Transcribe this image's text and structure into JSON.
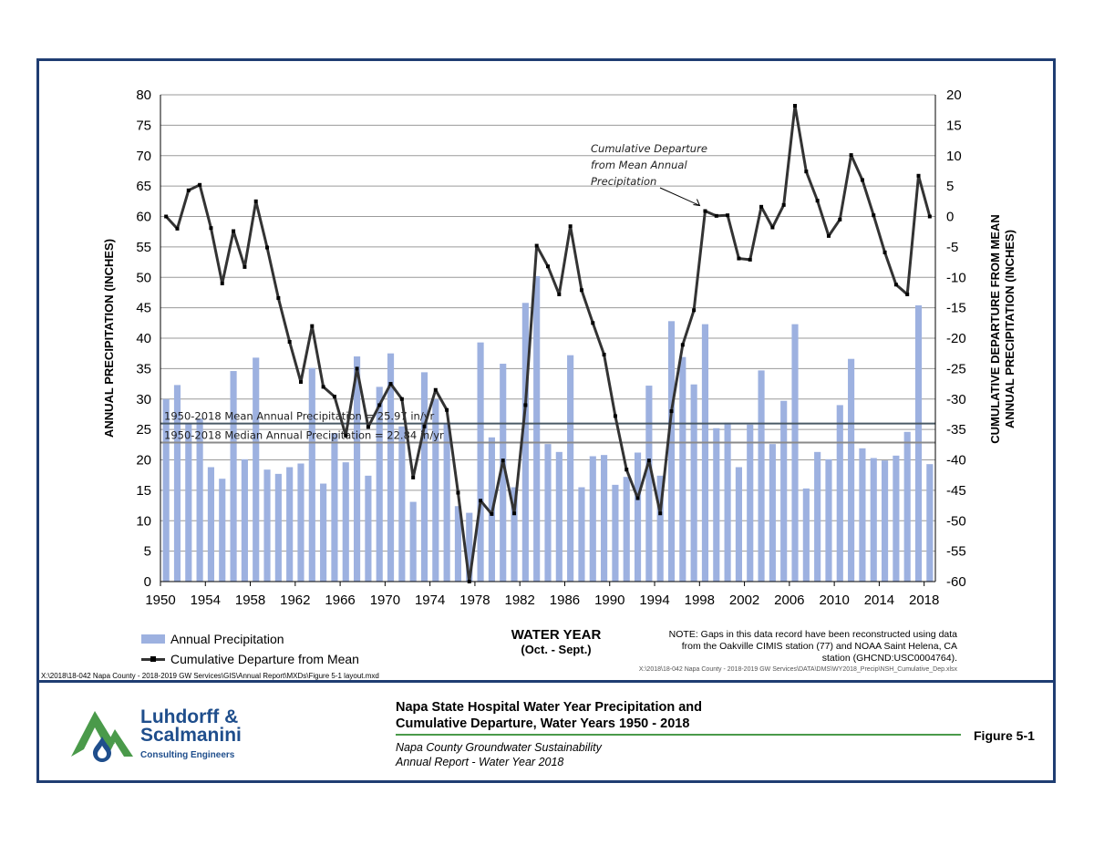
{
  "chart_data": {
    "type": "bar",
    "xlabel": "WATER YEAR",
    "xlabel_sub": "(Oct. - Sept.)",
    "ylabel_left": "ANNUAL  PRECIPITATION (INCHES)",
    "ylabel_right_lines": [
      "CUMULATIVE DEPARTURE FROM MEAN",
      "ANNUAL PRECIPITATION (INCHES)"
    ],
    "ylim_left": [
      0,
      80
    ],
    "ylim_right": [
      -60,
      20
    ],
    "yticks_left": [
      0,
      5,
      10,
      15,
      20,
      25,
      30,
      35,
      40,
      45,
      50,
      55,
      60,
      65,
      70,
      75,
      80
    ],
    "yticks_right": [
      -60,
      -55,
      -50,
      -45,
      -40,
      -35,
      -30,
      -25,
      -20,
      -15,
      -10,
      -5,
      0,
      5,
      10,
      15,
      20
    ],
    "xticks": [
      1950,
      1954,
      1958,
      1962,
      1966,
      1970,
      1974,
      1978,
      1982,
      1986,
      1990,
      1994,
      1998,
      2002,
      2006,
      2010,
      2014,
      2018
    ],
    "grid": true,
    "legend_position": "bottom-left",
    "years": [
      1950,
      1951,
      1952,
      1953,
      1954,
      1955,
      1956,
      1957,
      1958,
      1959,
      1960,
      1961,
      1962,
      1963,
      1964,
      1965,
      1966,
      1967,
      1968,
      1969,
      1970,
      1971,
      1972,
      1973,
      1974,
      1975,
      1976,
      1977,
      1978,
      1979,
      1980,
      1981,
      1982,
      1983,
      1984,
      1985,
      1986,
      1987,
      1988,
      1989,
      1990,
      1991,
      1992,
      1993,
      1994,
      1995,
      1996,
      1997,
      1998,
      1999,
      2000,
      2001,
      2002,
      2003,
      2004,
      2005,
      2006,
      2007,
      2008,
      2009,
      2010,
      2011,
      2012,
      2013,
      2014,
      2015,
      2016,
      2017,
      2018
    ],
    "series": [
      {
        "name": "Annual Precipitation",
        "axis": "left",
        "color": "#9db1e0",
        "values": [
          30.0,
          32.3,
          26.0,
          26.8,
          18.8,
          16.9,
          34.6,
          20.1,
          36.8,
          18.4,
          17.7,
          18.8,
          19.4,
          35.1,
          16.1,
          24.4,
          19.6,
          37.0,
          17.4,
          32.0,
          37.5,
          25.5,
          13.1,
          34.4,
          30.0,
          26.0,
          12.4,
          11.3,
          39.3,
          23.7,
          35.8,
          15.5,
          45.8,
          50.2,
          22.6,
          21.3,
          37.2,
          15.5,
          20.6,
          20.8,
          15.9,
          17.2,
          21.2,
          32.2,
          17.4,
          42.8,
          36.9,
          32.4,
          42.3,
          25.2,
          26.1,
          18.8,
          25.8,
          34.7,
          22.6,
          29.7,
          42.3,
          15.3,
          21.3,
          20.1,
          29.0,
          36.6,
          21.9,
          20.3,
          19.9,
          20.7,
          24.6,
          45.4,
          19.3
        ]
      },
      {
        "name": "Cumulative Departure from Mean",
        "axis": "right",
        "color": "#333333",
        "values": [
          0.0,
          -2.0,
          4.3,
          5.2,
          -1.9,
          -11.0,
          -2.4,
          -8.3,
          2.5,
          -5.1,
          -13.4,
          -20.6,
          -27.2,
          -18.0,
          -28.0,
          -29.6,
          -36.0,
          -25.0,
          -34.6,
          -31.0,
          -27.5,
          -30.0,
          -42.9,
          -34.5,
          -28.5,
          -31.8,
          -45.4,
          -60.0,
          -46.7,
          -48.9,
          -40.1,
          -48.8,
          -31.0,
          -4.8,
          -8.2,
          -12.8,
          -1.6,
          -12.1,
          -17.5,
          -22.7,
          -32.8,
          -41.6,
          -46.3,
          -40.1,
          -48.8,
          -32.0,
          -21.1,
          -15.4,
          0.9,
          0.1,
          0.2,
          -6.9,
          -7.1,
          1.6,
          -1.8,
          1.9,
          18.2,
          7.4,
          2.6,
          -3.2,
          -0.5,
          10.1,
          6.0,
          0.2,
          -5.9,
          -11.2,
          -12.8,
          6.7,
          0.0
        ]
      }
    ],
    "reference_lines": [
      {
        "label": "1950-2018 Mean Annual Precipitation = 25.97 in/yr",
        "value": 25.97,
        "color": "#4a5a66"
      },
      {
        "label": "1950-2018 Median Annual Precipitation = 22.84 in/yr",
        "value": 22.84,
        "color": "#8a8a8a"
      }
    ],
    "annotation": {
      "lines": [
        "Cumulative Departure",
        "from Mean Annual",
        "Precipitation"
      ],
      "points_to_year": 1998,
      "points_to_value": 0.9
    }
  },
  "legend": {
    "bar_label": "Annual Precipitation",
    "line_label": "Cumulative Departure from Mean"
  },
  "note": {
    "lines": [
      "NOTE: Gaps in this data record have been reconstructed using data",
      "from the Oakville CIMIS station (77) and NOAA Saint Helena, CA",
      "station (GHCND:USC0004764)."
    ]
  },
  "source_path_right": "X:\\2018\\18-042  Napa County  - 2018-2019 GW Services\\DATA\\DMS\\WY2018_Precip\\NSH_Cumulative_Dep.xlsx",
  "source_path_left": "X:\\2018\\18-042  Napa County - 2018-2019 GW Services\\GIS\\Annual Report\\MXDs\\Figure 5-1 layout.mxd",
  "titleblock": {
    "company_line1": "Luhdorff &",
    "company_line2": "Scalmanini",
    "company_sub": "Consulting Engineers",
    "title_line1": "Napa State Hospital Water Year Precipitation and",
    "title_line2": "Cumulative Departure, Water Years 1950 - 2018",
    "subtitle_line1": "Napa County Groundwater Sustainability",
    "subtitle_line2": "Annual Report - Water Year 2018",
    "figure_label": "Figure 5-1",
    "brand_color": "#1f4e8c",
    "logo_green": "#4a9a4a"
  }
}
